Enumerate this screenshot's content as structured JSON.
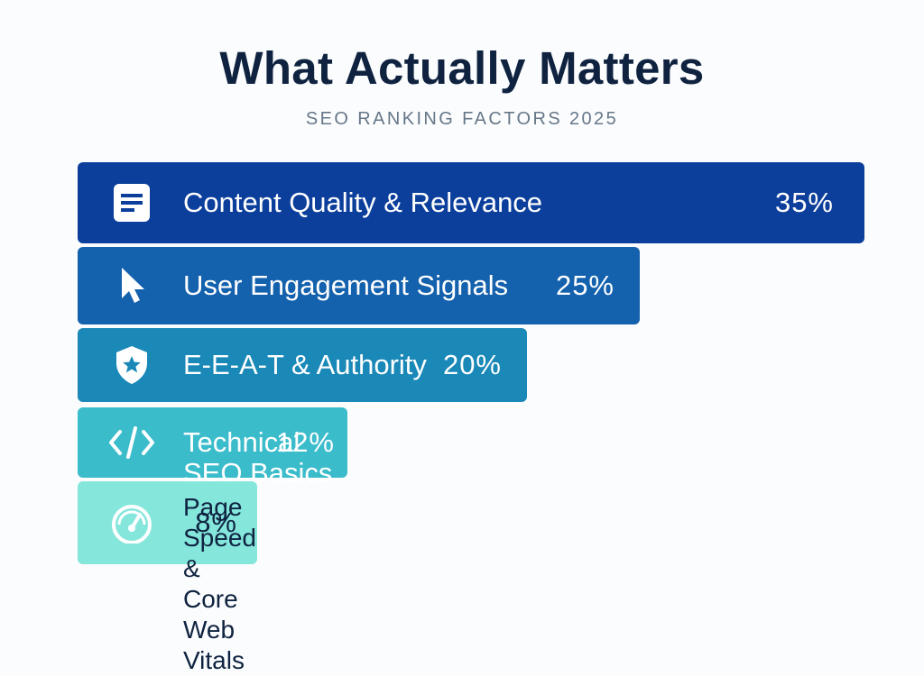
{
  "chart_data": {
    "type": "bar",
    "orientation": "horizontal",
    "title": "What Actually Matters",
    "subtitle": "SEO RANKING FACTORS 2025",
    "categories": [
      "Content Quality & Relevance",
      "User Engagement Signals",
      "E-E-A-T & Authority",
      "Technical SEO Basics",
      "Page Speed &\nCore Web Vitals"
    ],
    "values": [
      35,
      25,
      20,
      12,
      8
    ],
    "value_labels": [
      "35%",
      "25%",
      "20%",
      "12%",
      "8%"
    ],
    "unit": "%",
    "icons": [
      "document-icon",
      "cursor-icon",
      "shield-star-icon",
      "code-icon",
      "speedometer-icon"
    ],
    "colors": [
      "#0c3f9c",
      "#1461ad",
      "#1a89b8",
      "#3bbccb",
      "#85e6dc"
    ],
    "text_colors": [
      "#ffffff",
      "#ffffff",
      "#ffffff",
      "#ffffff",
      "#0f2340"
    ],
    "grid": false,
    "legend": "none"
  }
}
